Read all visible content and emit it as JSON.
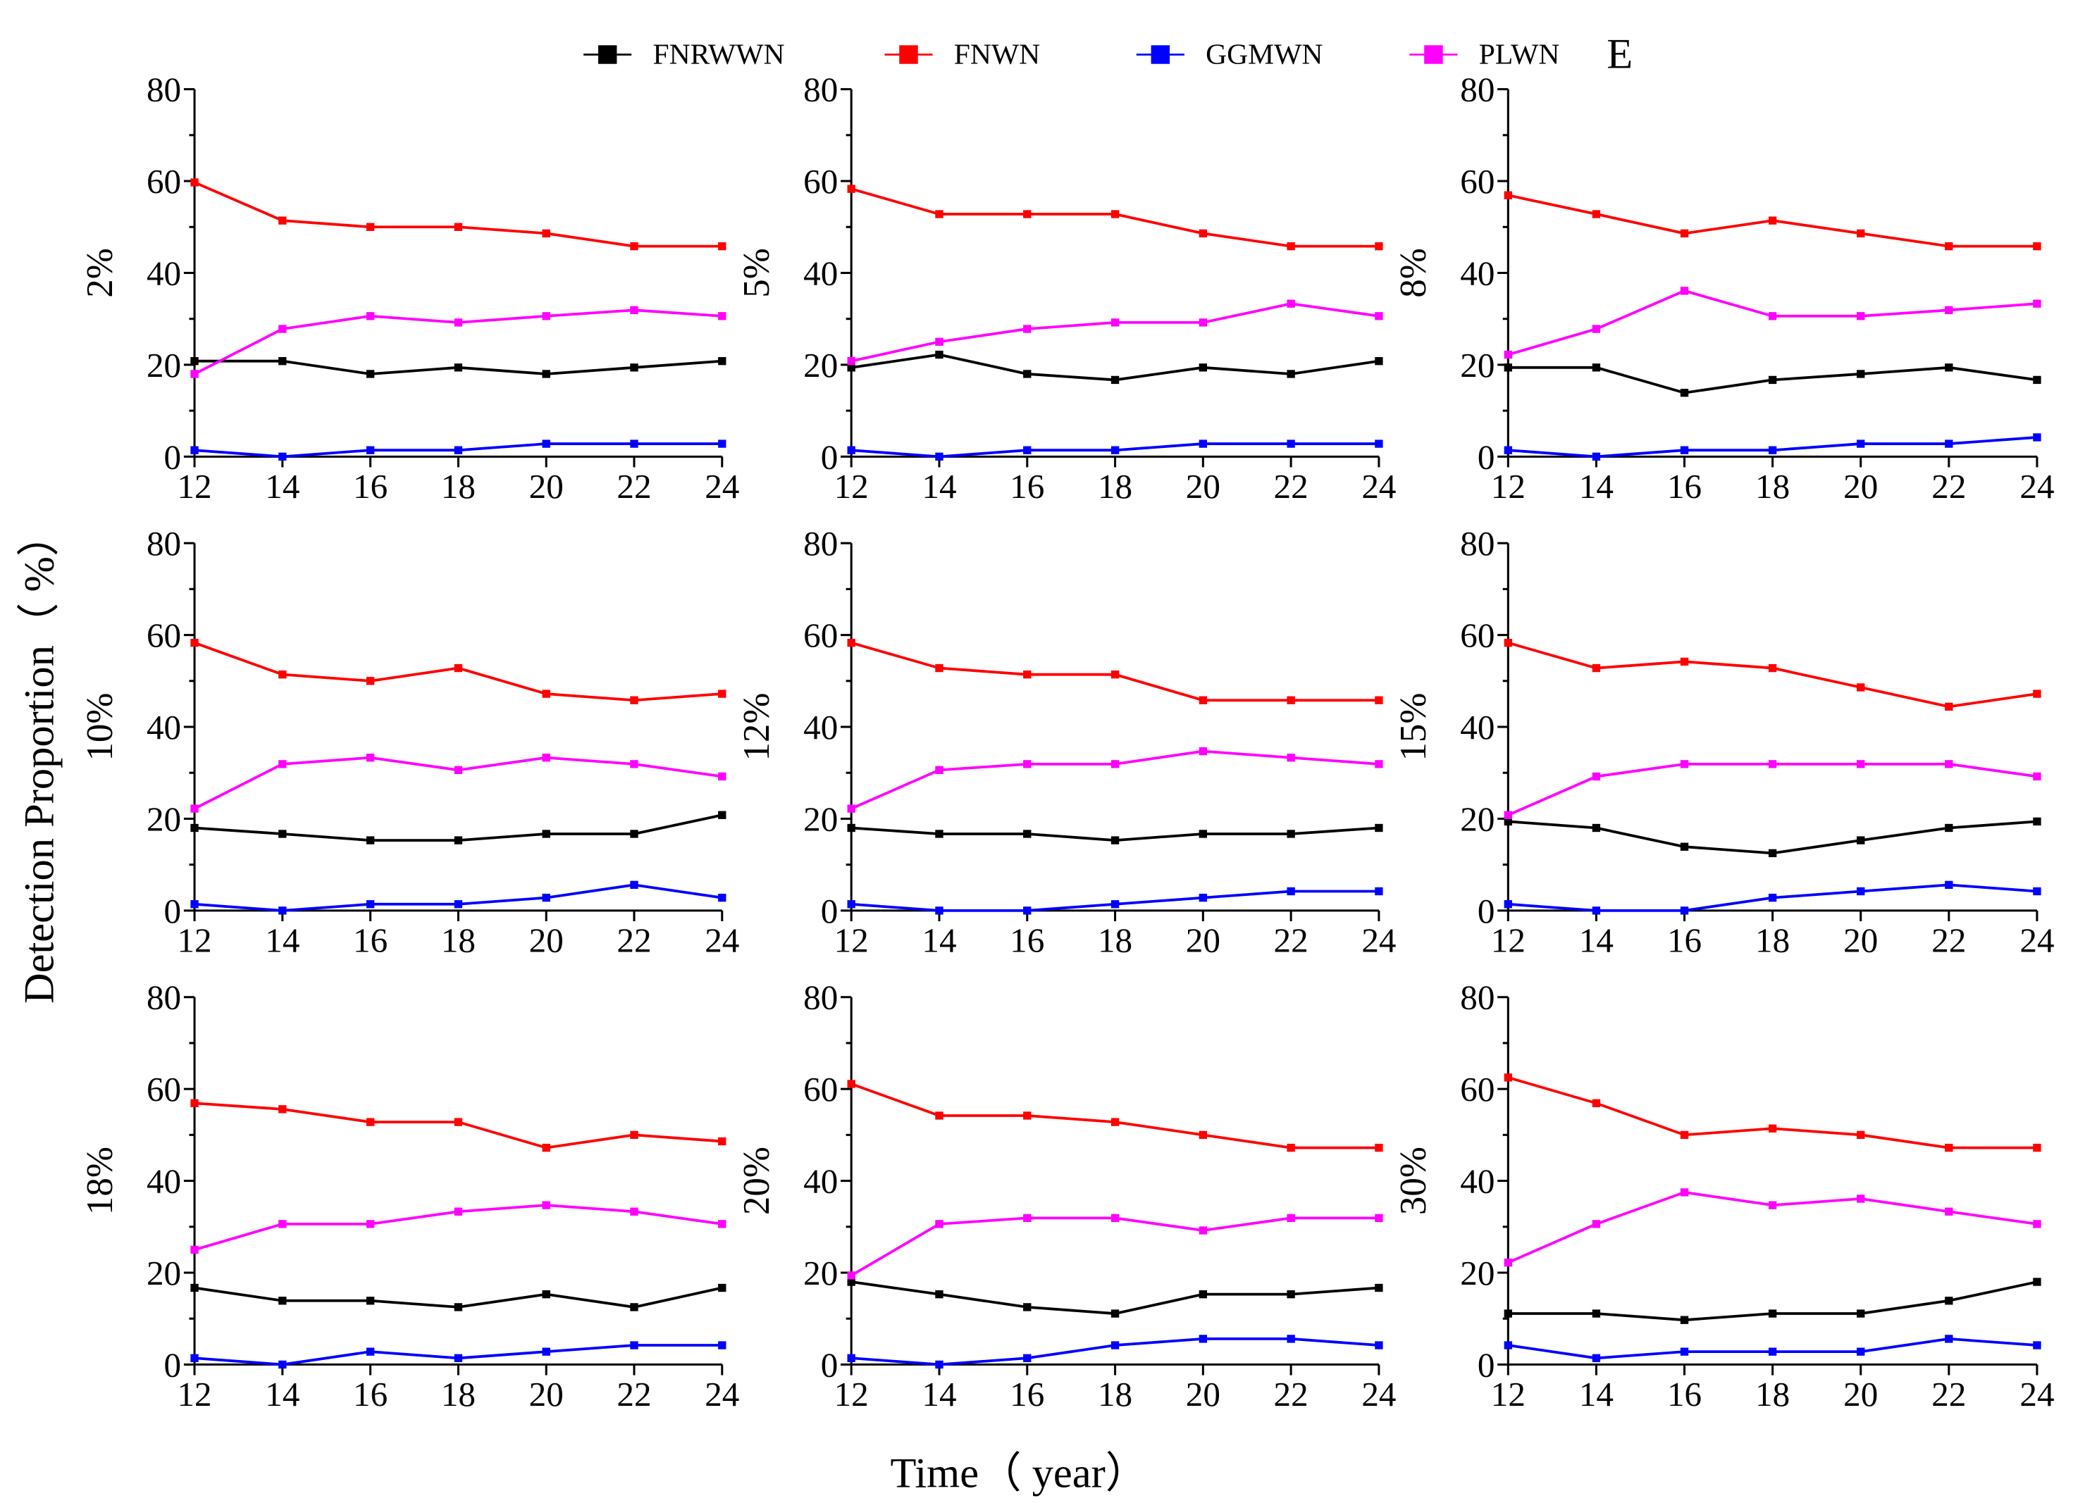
{
  "chart_data": [
    {
      "type": "line",
      "ylabel": "2%",
      "x": [
        12,
        14,
        16,
        18,
        20,
        22,
        24
      ],
      "xlim": [
        12,
        24
      ],
      "xticks": [
        12,
        14,
        16,
        18,
        20,
        22,
        24
      ],
      "ylim": [
        0,
        80
      ],
      "yticks": [
        0,
        20,
        40,
        60,
        80
      ],
      "series": [
        {
          "name": "FNRWWN",
          "color": "#000000",
          "values": [
            20.8,
            20.8,
            18,
            19.4,
            18,
            19.4,
            20.8
          ]
        },
        {
          "name": "FNWN",
          "color": "#ff0000",
          "values": [
            59.7,
            51.4,
            50,
            50,
            48.6,
            45.8,
            45.8
          ]
        },
        {
          "name": "GGMWN",
          "color": "#0000ff",
          "values": [
            1.4,
            0,
            1.4,
            1.4,
            2.8,
            2.8,
            2.8
          ]
        },
        {
          "name": "PLWN",
          "color": "#ff00ff",
          "values": [
            18,
            27.8,
            30.6,
            29.2,
            30.6,
            31.9,
            30.6
          ]
        }
      ]
    },
    {
      "type": "line",
      "ylabel": "5%",
      "x": [
        12,
        14,
        16,
        18,
        20,
        22,
        24
      ],
      "xlim": [
        12,
        24
      ],
      "xticks": [
        12,
        14,
        16,
        18,
        20,
        22,
        24
      ],
      "ylim": [
        0,
        80
      ],
      "yticks": [
        0,
        20,
        40,
        60,
        80
      ],
      "series": [
        {
          "name": "FNRWWN",
          "color": "#000000",
          "values": [
            19.4,
            22.2,
            18,
            16.7,
            19.4,
            18,
            20.8
          ]
        },
        {
          "name": "FNWN",
          "color": "#ff0000",
          "values": [
            58.3,
            52.8,
            52.8,
            52.8,
            48.6,
            45.8,
            45.8
          ]
        },
        {
          "name": "GGMWN",
          "color": "#0000ff",
          "values": [
            1.4,
            0,
            1.4,
            1.4,
            2.8,
            2.8,
            2.8
          ]
        },
        {
          "name": "PLWN",
          "color": "#ff00ff",
          "values": [
            20.8,
            25,
            27.8,
            29.2,
            29.2,
            33.3,
            30.6
          ]
        }
      ]
    },
    {
      "type": "line",
      "ylabel": "8%",
      "x": [
        12,
        14,
        16,
        18,
        20,
        22,
        24
      ],
      "xlim": [
        12,
        24
      ],
      "xticks": [
        12,
        14,
        16,
        18,
        20,
        22,
        24
      ],
      "ylim": [
        0,
        80
      ],
      "yticks": [
        0,
        20,
        40,
        60,
        80
      ],
      "series": [
        {
          "name": "FNRWWN",
          "color": "#000000",
          "values": [
            19.4,
            19.4,
            13.9,
            16.7,
            18,
            19.4,
            16.7
          ]
        },
        {
          "name": "FNWN",
          "color": "#ff0000",
          "values": [
            56.9,
            52.8,
            48.6,
            51.4,
            48.6,
            45.8,
            45.8
          ]
        },
        {
          "name": "GGMWN",
          "color": "#0000ff",
          "values": [
            1.4,
            0,
            1.4,
            1.4,
            2.8,
            2.8,
            4.2
          ]
        },
        {
          "name": "PLWN",
          "color": "#ff00ff",
          "values": [
            22.2,
            27.8,
            36.1,
            30.6,
            30.6,
            31.9,
            33.3
          ]
        }
      ]
    },
    {
      "type": "line",
      "ylabel": "10%",
      "x": [
        12,
        14,
        16,
        18,
        20,
        22,
        24
      ],
      "xlim": [
        12,
        24
      ],
      "xticks": [
        12,
        14,
        16,
        18,
        20,
        22,
        24
      ],
      "ylim": [
        0,
        80
      ],
      "yticks": [
        0,
        20,
        40,
        60,
        80
      ],
      "series": [
        {
          "name": "FNRWWN",
          "color": "#000000",
          "values": [
            18,
            16.7,
            15.3,
            15.3,
            16.7,
            16.7,
            20.8
          ]
        },
        {
          "name": "FNWN",
          "color": "#ff0000",
          "values": [
            58.3,
            51.4,
            50,
            52.8,
            47.2,
            45.8,
            47.2
          ]
        },
        {
          "name": "GGMWN",
          "color": "#0000ff",
          "values": [
            1.4,
            0,
            1.4,
            1.4,
            2.8,
            5.6,
            2.8
          ]
        },
        {
          "name": "PLWN",
          "color": "#ff00ff",
          "values": [
            22.2,
            31.9,
            33.3,
            30.6,
            33.3,
            31.9,
            29.2
          ]
        }
      ]
    },
    {
      "type": "line",
      "ylabel": "12%",
      "x": [
        12,
        14,
        16,
        18,
        20,
        22,
        24
      ],
      "xlim": [
        12,
        24
      ],
      "xticks": [
        12,
        14,
        16,
        18,
        20,
        22,
        24
      ],
      "ylim": [
        0,
        80
      ],
      "yticks": [
        0,
        20,
        40,
        60,
        80
      ],
      "series": [
        {
          "name": "FNRWWN",
          "color": "#000000",
          "values": [
            18,
            16.7,
            16.7,
            15.3,
            16.7,
            16.7,
            18
          ]
        },
        {
          "name": "FNWN",
          "color": "#ff0000",
          "values": [
            58.3,
            52.8,
            51.4,
            51.4,
            45.8,
            45.8,
            45.8
          ]
        },
        {
          "name": "GGMWN",
          "color": "#0000ff",
          "values": [
            1.4,
            0,
            0,
            1.4,
            2.8,
            4.2,
            4.2
          ]
        },
        {
          "name": "PLWN",
          "color": "#ff00ff",
          "values": [
            22.2,
            30.6,
            31.9,
            31.9,
            34.7,
            33.3,
            31.9
          ]
        }
      ]
    },
    {
      "type": "line",
      "ylabel": "15%",
      "x": [
        12,
        14,
        16,
        18,
        20,
        22,
        24
      ],
      "xlim": [
        12,
        24
      ],
      "xticks": [
        12,
        14,
        16,
        18,
        20,
        22,
        24
      ],
      "ylim": [
        0,
        80
      ],
      "yticks": [
        0,
        20,
        40,
        60,
        80
      ],
      "series": [
        {
          "name": "FNRWWN",
          "color": "#000000",
          "values": [
            19.4,
            18,
            13.9,
            12.5,
            15.3,
            18,
            19.4
          ]
        },
        {
          "name": "FNWN",
          "color": "#ff0000",
          "values": [
            58.3,
            52.8,
            54.2,
            52.8,
            48.6,
            44.4,
            47.2
          ]
        },
        {
          "name": "GGMWN",
          "color": "#0000ff",
          "values": [
            1.4,
            0,
            0,
            2.8,
            4.2,
            5.6,
            4.2
          ]
        },
        {
          "name": "PLWN",
          "color": "#ff00ff",
          "values": [
            20.8,
            29.2,
            31.9,
            31.9,
            31.9,
            31.9,
            29.2
          ]
        }
      ]
    },
    {
      "type": "line",
      "ylabel": "18%",
      "x": [
        12,
        14,
        16,
        18,
        20,
        22,
        24
      ],
      "xlim": [
        12,
        24
      ],
      "xticks": [
        12,
        14,
        16,
        18,
        20,
        22,
        24
      ],
      "ylim": [
        0,
        80
      ],
      "yticks": [
        0,
        20,
        40,
        60,
        80
      ],
      "series": [
        {
          "name": "FNRWWN",
          "color": "#000000",
          "values": [
            16.7,
            13.9,
            13.9,
            12.5,
            15.3,
            12.5,
            16.7
          ]
        },
        {
          "name": "FNWN",
          "color": "#ff0000",
          "values": [
            56.9,
            55.6,
            52.8,
            52.8,
            47.2,
            50,
            48.6
          ]
        },
        {
          "name": "GGMWN",
          "color": "#0000ff",
          "values": [
            1.4,
            0,
            2.8,
            1.4,
            2.8,
            4.2,
            4.2
          ]
        },
        {
          "name": "PLWN",
          "color": "#ff00ff",
          "values": [
            25,
            30.6,
            30.6,
            33.3,
            34.7,
            33.3,
            30.6
          ]
        }
      ]
    },
    {
      "type": "line",
      "ylabel": "20%",
      "x": [
        12,
        14,
        16,
        18,
        20,
        22,
        24
      ],
      "xlim": [
        12,
        24
      ],
      "xticks": [
        12,
        14,
        16,
        18,
        20,
        22,
        24
      ],
      "ylim": [
        0,
        80
      ],
      "yticks": [
        0,
        20,
        40,
        60,
        80
      ],
      "series": [
        {
          "name": "FNRWWN",
          "color": "#000000",
          "values": [
            18,
            15.3,
            12.5,
            11.1,
            15.3,
            15.3,
            16.7
          ]
        },
        {
          "name": "FNWN",
          "color": "#ff0000",
          "values": [
            61.1,
            54.2,
            54.2,
            52.8,
            50,
            47.2,
            47.2
          ]
        },
        {
          "name": "GGMWN",
          "color": "#0000ff",
          "values": [
            1.4,
            0,
            1.4,
            4.2,
            5.6,
            5.6,
            4.2
          ]
        },
        {
          "name": "PLWN",
          "color": "#ff00ff",
          "values": [
            19.4,
            30.6,
            31.9,
            31.9,
            29.2,
            31.9,
            31.9
          ]
        }
      ]
    },
    {
      "type": "line",
      "ylabel": "30%",
      "x": [
        12,
        14,
        16,
        18,
        20,
        22,
        24
      ],
      "xlim": [
        12,
        24
      ],
      "xticks": [
        12,
        14,
        16,
        18,
        20,
        22,
        24
      ],
      "ylim": [
        0,
        80
      ],
      "yticks": [
        0,
        20,
        40,
        60,
        80
      ],
      "series": [
        {
          "name": "FNRWWN",
          "color": "#000000",
          "values": [
            11.1,
            11.1,
            9.7,
            11.1,
            11.1,
            13.9,
            18
          ]
        },
        {
          "name": "FNWN",
          "color": "#ff0000",
          "values": [
            62.5,
            56.9,
            50,
            51.4,
            50,
            47.2,
            47.2
          ]
        },
        {
          "name": "GGMWN",
          "color": "#0000ff",
          "values": [
            4.2,
            1.4,
            2.8,
            2.8,
            2.8,
            5.6,
            4.2
          ]
        },
        {
          "name": "PLWN",
          "color": "#ff00ff",
          "values": [
            22.2,
            30.6,
            37.5,
            34.7,
            36.1,
            33.3,
            30.6
          ]
        }
      ]
    }
  ],
  "ylabel": "Detection Proportion（ %）",
  "xlabel": "Time（ year）",
  "annotation": "E"
}
